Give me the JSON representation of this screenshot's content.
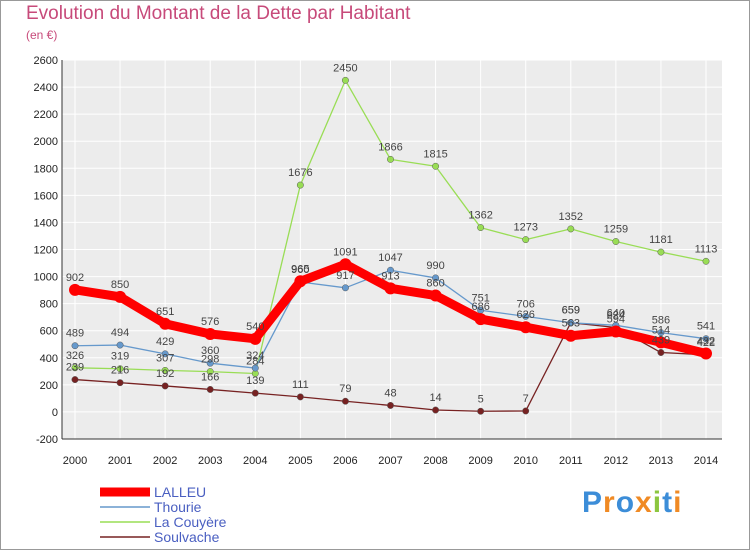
{
  "title": "Evolution du Montant de la Dette par Habitant",
  "unit": "(en €)",
  "logo": "Proxiti",
  "chart_data": {
    "type": "line",
    "title": "Evolution du Montant de la Dette par Habitant",
    "ylabel": "(en €)",
    "ylim": [
      -200,
      2600
    ],
    "yticks": [
      -200,
      0,
      200,
      400,
      600,
      800,
      1000,
      1200,
      1400,
      1600,
      1800,
      2000,
      2200,
      2400,
      2600
    ],
    "x": [
      "2000",
      "2001",
      "2002",
      "2003",
      "2004",
      "2005",
      "2006",
      "2007",
      "2008",
      "2009",
      "2010",
      "2011",
      "2012",
      "2013",
      "2014"
    ],
    "grid": true,
    "legend_position": "bottom-left",
    "series": [
      {
        "name": "LALLEU",
        "color": "#ff0000",
        "values": [
          902,
          850,
          651,
          576,
          540,
          965,
          1091,
          913,
          860,
          686,
          626,
          563,
          594,
          514,
          432
        ]
      },
      {
        "name": "Thourie",
        "color": "#6699cc",
        "values": [
          489,
          494,
          429,
          360,
          324,
          960,
          917,
          1047,
          990,
          751,
          706,
          659,
          640,
          586,
          541
        ]
      },
      {
        "name": "La Couyère",
        "color": "#99dd55",
        "values": [
          326,
          319,
          307,
          298,
          284,
          1676,
          2450,
          1866,
          1815,
          1362,
          1273,
          1352,
          1259,
          1181,
          1113
        ]
      },
      {
        "name": "Soulvache",
        "color": "#772222",
        "values": [
          239,
          216,
          192,
          166,
          139,
          111,
          79,
          48,
          14,
          5,
          7,
          659,
          624,
          439,
          422
        ]
      }
    ]
  }
}
